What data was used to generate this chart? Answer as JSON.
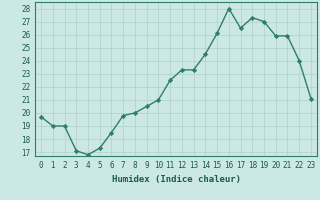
{
  "title": "",
  "xlabel": "Humidex (Indice chaleur)",
  "x": [
    0,
    1,
    2,
    3,
    4,
    5,
    6,
    7,
    8,
    9,
    10,
    11,
    12,
    13,
    14,
    15,
    16,
    17,
    18,
    19,
    20,
    21,
    22,
    23
  ],
  "y": [
    19.7,
    19.0,
    19.0,
    17.1,
    16.8,
    17.3,
    18.5,
    19.8,
    20.0,
    20.5,
    21.0,
    22.5,
    23.3,
    23.3,
    24.5,
    26.1,
    28.0,
    26.5,
    27.3,
    27.0,
    25.9,
    25.9,
    24.0,
    21.1
  ],
  "line_color": "#2e7d6e",
  "marker": "D",
  "marker_size": 2.2,
  "bg_color": "#cce8e5",
  "grid_color": "#b0d0cc",
  "ylim_min": 16.7,
  "ylim_max": 28.5,
  "yticks": [
    17,
    18,
    19,
    20,
    21,
    22,
    23,
    24,
    25,
    26,
    27,
    28
  ],
  "xticks": [
    0,
    1,
    2,
    3,
    4,
    5,
    6,
    7,
    8,
    9,
    10,
    11,
    12,
    13,
    14,
    15,
    16,
    17,
    18,
    19,
    20,
    21,
    22,
    23
  ],
  "tick_color": "#1a5a52",
  "xlabel_color": "#1a5a52",
  "spine_color": "#2e7d6e",
  "tick_fontsize": 5.5,
  "xlabel_fontsize": 6.5,
  "linewidth": 1.0
}
